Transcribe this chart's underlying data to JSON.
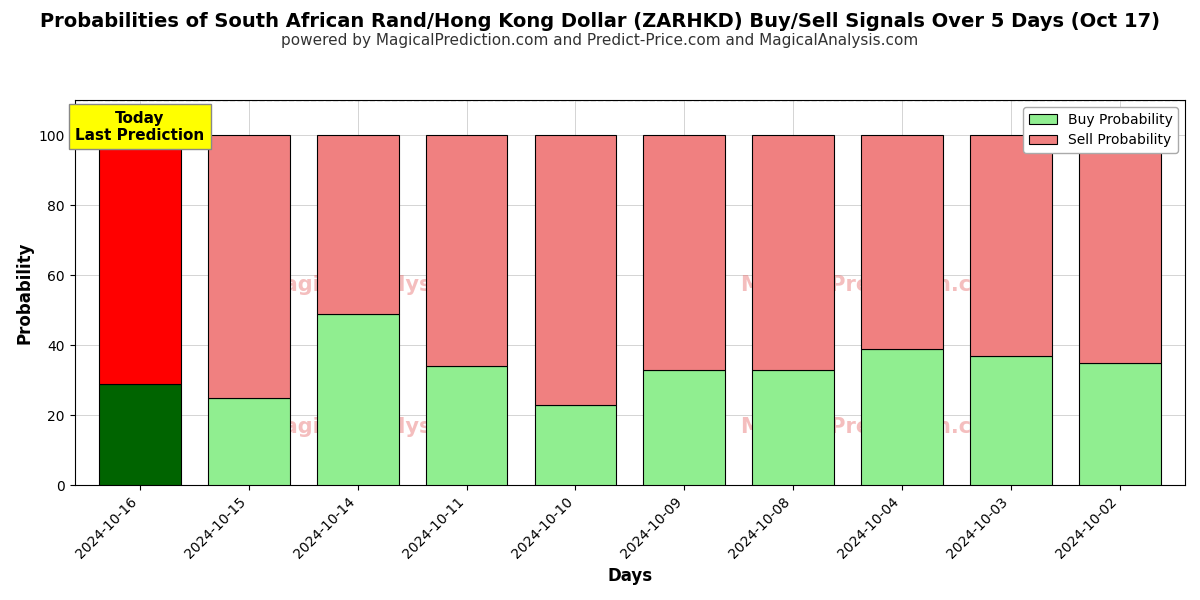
{
  "title": "Probabilities of South African Rand/Hong Kong Dollar (ZARHKD) Buy/Sell Signals Over 5 Days (Oct 17)",
  "subtitle": "powered by MagicalPrediction.com and Predict-Price.com and MagicalAnalysis.com",
  "xlabel": "Days",
  "ylabel": "Probability",
  "categories": [
    "2024-10-16",
    "2024-10-15",
    "2024-10-14",
    "2024-10-11",
    "2024-10-10",
    "2024-10-09",
    "2024-10-08",
    "2024-10-04",
    "2024-10-03",
    "2024-10-02"
  ],
  "buy_values": [
    29,
    25,
    49,
    34,
    23,
    33,
    33,
    39,
    37,
    35
  ],
  "sell_values": [
    71,
    75,
    51,
    66,
    77,
    67,
    67,
    61,
    63,
    65
  ],
  "today_bar_buy_color": "#006400",
  "today_bar_sell_color": "#ff0000",
  "other_bar_buy_color": "#90EE90",
  "other_bar_sell_color": "#F08080",
  "bar_edge_color": "#000000",
  "ylim": [
    0,
    110
  ],
  "yticks": [
    0,
    20,
    40,
    60,
    80,
    100
  ],
  "dashed_line_y": 110,
  "today_annotation": "Today\nLast Prediction",
  "legend_buy_label": "Buy Probability",
  "legend_sell_label": "Sell Probability",
  "title_fontsize": 14,
  "subtitle_fontsize": 11,
  "axis_label_fontsize": 12,
  "tick_fontsize": 10,
  "background_color": "#ffffff",
  "plot_bg_color": "#ffffff",
  "grid_color": "#aaaaaa",
  "annotation_box_color": "#ffff00",
  "annotation_fontsize": 11,
  "bar_width": 0.75
}
